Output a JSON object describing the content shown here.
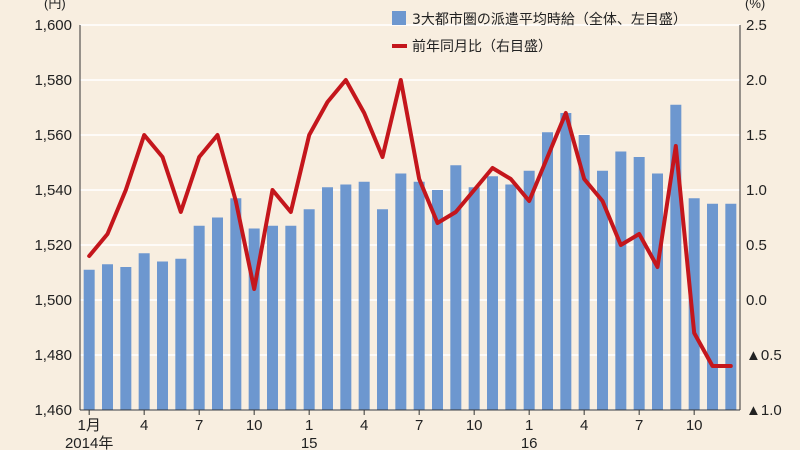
{
  "chart_data": {
    "type": "bar+line",
    "legend_placement": "top-center",
    "grid": true,
    "left_axis": {
      "unit_label": "(円)",
      "min": 1460,
      "max": 1600,
      "ticks": [
        1460,
        1480,
        1500,
        1520,
        1540,
        1560,
        1580,
        1600
      ],
      "tick_labels": [
        "1,460",
        "1,480",
        "1,500",
        "1,520",
        "1,540",
        "1,560",
        "1,580",
        "1,600"
      ]
    },
    "right_axis": {
      "unit_label": "(%)",
      "min": -1.0,
      "max": 2.5,
      "ticks": [
        -1.0,
        -0.5,
        0.0,
        0.5,
        1.0,
        1.5,
        2.0,
        2.5
      ],
      "tick_labels": [
        "▲1.0",
        "▲0.5",
        "0.0",
        "0.5",
        "1.0",
        "1.5",
        "2.0",
        "2.5"
      ]
    },
    "x_tick_labels": [
      {
        "index": 0,
        "label": "1月"
      },
      {
        "index": 3,
        "label": "4"
      },
      {
        "index": 6,
        "label": "7"
      },
      {
        "index": 9,
        "label": "10"
      },
      {
        "index": 12,
        "label": "1"
      },
      {
        "index": 15,
        "label": "4"
      },
      {
        "index": 18,
        "label": "7"
      },
      {
        "index": 21,
        "label": "10"
      },
      {
        "index": 24,
        "label": "1"
      },
      {
        "index": 27,
        "label": "4"
      },
      {
        "index": 30,
        "label": "7"
      },
      {
        "index": 33,
        "label": "10"
      }
    ],
    "year_labels": [
      {
        "index": 0,
        "label": "2014年"
      },
      {
        "index": 12,
        "label": "15"
      },
      {
        "index": 24,
        "label": "16"
      }
    ],
    "series": [
      {
        "name": "3大都市圏の派遣平均時給（全体、左目盛）",
        "type": "bar",
        "axis": "left",
        "color": "#6d97cf",
        "values": [
          1511,
          1513,
          1512,
          1517,
          1514,
          1515,
          1527,
          1530,
          1537,
          1526,
          1527,
          1527,
          1533,
          1541,
          1542,
          1543,
          1533,
          1546,
          1543,
          1540,
          1549,
          1541,
          1545,
          1542,
          1547,
          1561,
          1568,
          1560,
          1547,
          1554,
          1552,
          1546,
          1571,
          1537,
          1535,
          1535
        ]
      },
      {
        "name": "前年同月比（右目盛）",
        "type": "line",
        "axis": "right",
        "color": "#c4161c",
        "values": [
          0.4,
          0.6,
          1.0,
          1.5,
          1.3,
          0.8,
          1.3,
          1.5,
          0.9,
          0.1,
          1.0,
          0.8,
          1.5,
          1.8,
          2.0,
          1.7,
          1.3,
          2.0,
          1.1,
          0.7,
          0.8,
          1.0,
          1.2,
          1.1,
          0.9,
          1.3,
          1.7,
          1.1,
          0.9,
          0.5,
          0.6,
          0.3,
          1.4,
          -0.3,
          -0.6,
          -0.6
        ]
      }
    ]
  }
}
